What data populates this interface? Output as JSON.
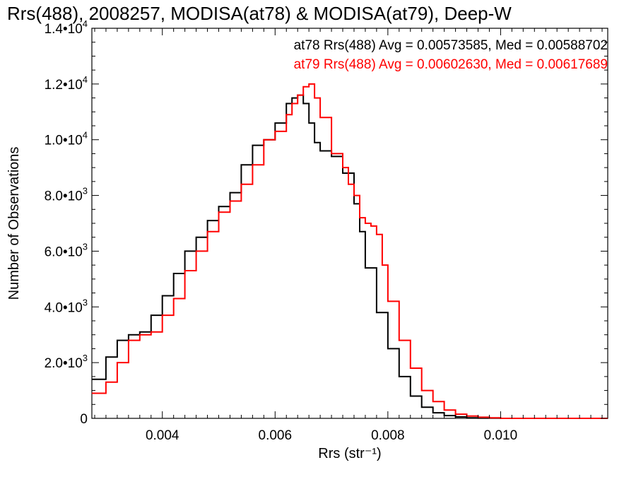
{
  "chart_data": {
    "type": "line",
    "step": true,
    "title": "Rrs(488), 2008257, MODISA(at78) & MODISA(at79), Deep-W",
    "xlabel": "Rrs (str⁻¹)",
    "ylabel": "Number of Observations",
    "xlim": [
      0.00275,
      0.0119
    ],
    "ylim": [
      0,
      14000
    ],
    "xticks": [
      {
        "value": 0.004,
        "label": "0.004"
      },
      {
        "value": 0.006,
        "label": "0.006"
      },
      {
        "value": 0.008,
        "label": "0.008"
      },
      {
        "value": 0.01,
        "label": "0.010"
      }
    ],
    "yticks": [
      {
        "value": 0,
        "mant": "0",
        "exp": ""
      },
      {
        "value": 2000,
        "mant": "2.0•10",
        "exp": "3"
      },
      {
        "value": 4000,
        "mant": "4.0•10",
        "exp": "3"
      },
      {
        "value": 6000,
        "mant": "6.0•10",
        "exp": "3"
      },
      {
        "value": 8000,
        "mant": "8.0•10",
        "exp": "3"
      },
      {
        "value": 10000,
        "mant": "1.0•10",
        "exp": "4"
      },
      {
        "value": 12000,
        "mant": "1.2•10",
        "exp": "4"
      },
      {
        "value": 14000,
        "mant": "1.4•10",
        "exp": "4"
      }
    ],
    "annotations": [
      {
        "text": "at78 Rrs(488) Avg = 0.00573585, Med = 0.00588702",
        "color": "#000000"
      },
      {
        "text": "at79 Rrs(488) Avg = 0.00602630, Med = 0.00617689",
        "color": "#ff0000"
      }
    ],
    "series": [
      {
        "color": "#000000",
        "x": [
          0.00275,
          0.003,
          0.0032,
          0.0034,
          0.0035,
          0.0036,
          0.0038,
          0.004,
          0.0042,
          0.0044,
          0.0046,
          0.0048,
          0.005,
          0.0052,
          0.0054,
          0.0056,
          0.0058,
          0.006,
          0.0062,
          0.0063,
          0.0064,
          0.0065,
          0.0066,
          0.0067,
          0.0068,
          0.007,
          0.0072,
          0.0074,
          0.0075,
          0.0076,
          0.0078,
          0.008,
          0.0082,
          0.0084,
          0.0086,
          0.0088,
          0.009,
          0.0092,
          0.0094,
          0.0096,
          0.01,
          0.0105,
          0.0119
        ],
        "y": [
          1400,
          2200,
          2800,
          3000,
          3000,
          3100,
          3700,
          4400,
          5200,
          6000,
          6500,
          7100,
          7600,
          8100,
          9100,
          9800,
          10000,
          10600,
          11300,
          11500,
          11600,
          11300,
          10600,
          9900,
          9600,
          9400,
          8800,
          7700,
          6700,
          5400,
          3800,
          2500,
          1500,
          800,
          400,
          200,
          100,
          50,
          20,
          10,
          0,
          0,
          0
        ]
      },
      {
        "color": "#ff0000",
        "x": [
          0.00275,
          0.003,
          0.0032,
          0.0034,
          0.0036,
          0.0038,
          0.004,
          0.0042,
          0.0044,
          0.0046,
          0.0048,
          0.005,
          0.0052,
          0.0054,
          0.0056,
          0.0058,
          0.006,
          0.0062,
          0.0063,
          0.0064,
          0.0065,
          0.0066,
          0.0067,
          0.0068,
          0.007,
          0.0072,
          0.0073,
          0.0074,
          0.0075,
          0.0076,
          0.0077,
          0.0078,
          0.0079,
          0.008,
          0.0082,
          0.0084,
          0.0086,
          0.0088,
          0.009,
          0.0092,
          0.0094,
          0.0096,
          0.0098,
          0.01,
          0.0105,
          0.0119
        ],
        "y": [
          900,
          1300,
          2000,
          2800,
          3000,
          3100,
          3700,
          4300,
          5300,
          6000,
          6700,
          7400,
          7800,
          8400,
          9100,
          10000,
          10300,
          10900,
          11300,
          11600,
          11900,
          12000,
          11500,
          10800,
          9500,
          9000,
          8400,
          8000,
          7200,
          7000,
          6900,
          6600,
          5500,
          4200,
          2800,
          1800,
          1000,
          600,
          300,
          150,
          80,
          40,
          20,
          0,
          0,
          0
        ]
      }
    ]
  }
}
